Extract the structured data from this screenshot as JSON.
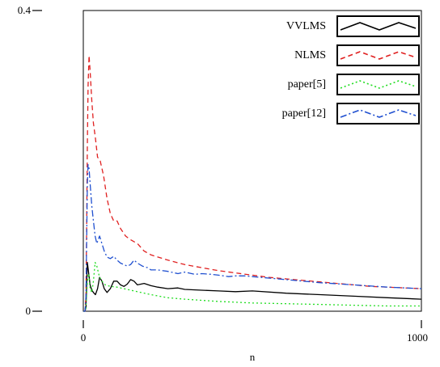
{
  "chart_data": {
    "type": "line",
    "title": "",
    "xlabel": "n",
    "ylabel": "",
    "xlim": [
      0,
      1000
    ],
    "ylim": [
      0,
      0.4
    ],
    "x_ticks": [
      "0",
      "1000"
    ],
    "y_ticks": [
      "0",
      "0.4"
    ],
    "grid": false,
    "legend_position": "top-right",
    "series": [
      {
        "name": "VVLMS",
        "color": "#000000",
        "dash": "solid",
        "x": [
          0,
          5,
          8,
          12,
          16,
          20,
          25,
          30,
          36,
          42,
          48,
          55,
          62,
          70,
          80,
          90,
          100,
          110,
          120,
          130,
          140,
          150,
          160,
          170,
          180,
          200,
          220,
          250,
          280,
          300,
          350,
          400,
          450,
          500,
          600,
          700,
          800,
          900,
          1000
        ],
        "y": [
          0,
          0,
          0.005,
          0.065,
          0.05,
          0.035,
          0.028,
          0.025,
          0.022,
          0.03,
          0.045,
          0.04,
          0.03,
          0.025,
          0.03,
          0.04,
          0.04,
          0.035,
          0.033,
          0.036,
          0.042,
          0.04,
          0.035,
          0.036,
          0.037,
          0.034,
          0.032,
          0.03,
          0.031,
          0.029,
          0.028,
          0.027,
          0.026,
          0.027,
          0.024,
          0.022,
          0.02,
          0.018,
          0.016
        ]
      },
      {
        "name": "NLMS",
        "color": "#e02020",
        "dash": "dashed",
        "x": [
          0,
          5,
          8,
          10,
          12,
          14,
          17,
          20,
          25,
          30,
          36,
          42,
          50,
          60,
          70,
          80,
          90,
          100,
          110,
          125,
          140,
          160,
          180,
          200,
          250,
          300,
          350,
          400,
          450,
          500,
          550,
          600,
          650,
          700,
          750,
          800,
          850,
          900,
          950,
          1000
        ],
        "y": [
          0,
          0,
          0.02,
          0.12,
          0.22,
          0.3,
          0.34,
          0.32,
          0.28,
          0.25,
          0.23,
          0.205,
          0.2,
          0.18,
          0.15,
          0.13,
          0.12,
          0.12,
          0.11,
          0.1,
          0.095,
          0.09,
          0.08,
          0.075,
          0.068,
          0.062,
          0.058,
          0.054,
          0.051,
          0.048,
          0.045,
          0.043,
          0.041,
          0.039,
          0.037,
          0.035,
          0.033,
          0.032,
          0.031,
          0.03
        ]
      },
      {
        "name": "paper[5]",
        "color": "#22dd22",
        "dash": "dotted",
        "x": [
          0,
          5,
          8,
          12,
          16,
          20,
          25,
          30,
          35,
          40,
          48,
          55,
          65,
          80,
          100,
          120,
          150,
          200,
          250,
          300,
          400,
          500,
          600,
          700,
          800,
          900,
          1000
        ],
        "y": [
          0,
          0,
          0.005,
          0.04,
          0.05,
          0.03,
          0.025,
          0.04,
          0.065,
          0.06,
          0.045,
          0.04,
          0.035,
          0.033,
          0.032,
          0.03,
          0.027,
          0.022,
          0.018,
          0.016,
          0.013,
          0.011,
          0.01,
          0.009,
          0.008,
          0.007,
          0.007
        ]
      },
      {
        "name": "paper[12]",
        "color": "#2050d0",
        "dash": "dashdot",
        "x": [
          0,
          5,
          8,
          10,
          12,
          14,
          17,
          20,
          25,
          30,
          35,
          40,
          48,
          55,
          62,
          70,
          80,
          90,
          100,
          110,
          120,
          130,
          140,
          150,
          160,
          175,
          190,
          200,
          220,
          250,
          280,
          300,
          330,
          350,
          380,
          400,
          430,
          450,
          480,
          500,
          600,
          700,
          800,
          900,
          1000
        ],
        "y": [
          0,
          0,
          0.02,
          0.1,
          0.17,
          0.195,
          0.19,
          0.17,
          0.14,
          0.12,
          0.1,
          0.09,
          0.1,
          0.09,
          0.08,
          0.072,
          0.07,
          0.073,
          0.068,
          0.064,
          0.062,
          0.06,
          0.062,
          0.068,
          0.064,
          0.06,
          0.058,
          0.055,
          0.055,
          0.053,
          0.05,
          0.052,
          0.049,
          0.05,
          0.049,
          0.048,
          0.046,
          0.047,
          0.047,
          0.046,
          0.042,
          0.038,
          0.035,
          0.032,
          0.03
        ]
      }
    ]
  }
}
